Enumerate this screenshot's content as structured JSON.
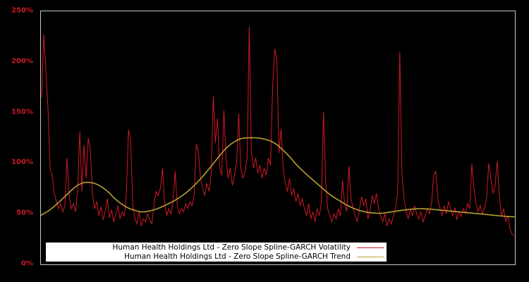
{
  "chart_data": {
    "type": "line",
    "title": "",
    "ylabel": "",
    "xlabel": "",
    "ylim": [
      0,
      250
    ],
    "y_ticks": [
      "0%",
      "50%",
      "100%",
      "150%",
      "200%",
      "250%"
    ],
    "x_tick_labels_shown": false,
    "grid": false,
    "legend_position": "bottom-left",
    "background_color": "#000000",
    "frame_color": "#c8c8c8",
    "tick_label_color": "#cd1a26",
    "series": [
      {
        "name": "Human Health Holdings Ltd - Zero Slope Spline-GARCH Volatility",
        "color": "#cd1a26",
        "unit": "percent",
        "values": [
          165,
          227,
          192,
          155,
          95,
          88,
          70,
          62,
          55,
          60,
          52,
          58,
          105,
          68,
          55,
          60,
          52,
          75,
          131,
          72,
          118,
          85,
          125,
          113,
          70,
          55,
          62,
          48,
          57,
          44,
          52,
          65,
          46,
          54,
          42,
          50,
          58,
          45,
          52,
          48,
          70,
          133,
          122,
          60,
          45,
          40,
          52,
          38,
          45,
          42,
          50,
          44,
          40,
          58,
          72,
          68,
          75,
          95,
          62,
          48,
          55,
          50,
          62,
          92,
          58,
          50,
          55,
          52,
          60,
          55,
          62,
          58,
          68,
          119,
          111,
          85,
          75,
          68,
          80,
          72,
          90,
          166,
          120,
          144,
          95,
          88,
          152,
          105,
          85,
          95,
          78,
          88,
          100,
          149,
          95,
          85,
          92,
          105,
          235,
          110,
          95,
          105,
          90,
          98,
          85,
          95,
          88,
          105,
          98,
          175,
          213,
          203,
          110,
          134,
          95,
          80,
          72,
          85,
          68,
          75,
          62,
          70,
          58,
          65,
          55,
          48,
          60,
          45,
          52,
          42,
          55,
          48,
          60,
          151,
          85,
          55,
          48,
          42,
          50,
          45,
          55,
          48,
          83,
          60,
          52,
          97,
          65,
          55,
          48,
          42,
          55,
          67,
          58,
          65,
          45,
          52,
          68,
          60,
          70,
          55,
          48,
          42,
          50,
          38,
          45,
          40,
          48,
          55,
          70,
          210,
          90,
          65,
          52,
          45,
          55,
          48,
          58,
          50,
          45,
          52,
          42,
          48,
          55,
          50,
          60,
          88,
          92,
          65,
          55,
          48,
          58,
          50,
          62,
          55,
          48,
          56,
          44,
          52,
          47,
          55,
          50,
          60,
          55,
          99,
          75,
          60,
          52,
          58,
          50,
          55,
          65,
          100,
          85,
          70,
          78,
          102,
          68,
          48,
          55,
          42,
          48,
          35,
          30,
          28
        ]
      },
      {
        "name": "Human Health Holdings Ltd - Zero Slope Spline-GARCH Trend",
        "color": "#b9a032",
        "unit": "percent",
        "anchors": [
          [
            0,
            48.5
          ],
          [
            13,
            54
          ],
          [
            28,
            63
          ],
          [
            43,
            73
          ],
          [
            53,
            78.5
          ],
          [
            64,
            81
          ],
          [
            78,
            79.5
          ],
          [
            93,
            73
          ],
          [
            108,
            63
          ],
          [
            123,
            56
          ],
          [
            138,
            52.5
          ],
          [
            148,
            52
          ],
          [
            163,
            54.5
          ],
          [
            178,
            59
          ],
          [
            193,
            64.5
          ],
          [
            208,
            72
          ],
          [
            223,
            82
          ],
          [
            238,
            94
          ],
          [
            253,
            107
          ],
          [
            263,
            115
          ],
          [
            273,
            120.5
          ],
          [
            283,
            124
          ],
          [
            293,
            125
          ],
          [
            308,
            124.8
          ],
          [
            323,
            122.5
          ],
          [
            333,
            119
          ],
          [
            343,
            113
          ],
          [
            353,
            106
          ],
          [
            363,
            98
          ],
          [
            378,
            88
          ],
          [
            393,
            79
          ],
          [
            408,
            70
          ],
          [
            423,
            63
          ],
          [
            438,
            57
          ],
          [
            453,
            53
          ],
          [
            468,
            51
          ],
          [
            483,
            50.5
          ],
          [
            498,
            52
          ],
          [
            513,
            53.5
          ],
          [
            528,
            54.7
          ],
          [
            538,
            55
          ],
          [
            553,
            54.5
          ],
          [
            568,
            53.5
          ],
          [
            583,
            52.5
          ],
          [
            598,
            51.5
          ],
          [
            613,
            50.5
          ],
          [
            628,
            49.5
          ],
          [
            643,
            48.5
          ],
          [
            658,
            47.5
          ],
          [
            671,
            47
          ]
        ]
      }
    ]
  },
  "legend": {
    "items": [
      {
        "label": "Human Health Holdings Ltd - Zero Slope Spline-GARCH Volatility"
      },
      {
        "label": "Human Health Holdings Ltd - Zero Slope Spline-GARCH Trend"
      }
    ]
  }
}
